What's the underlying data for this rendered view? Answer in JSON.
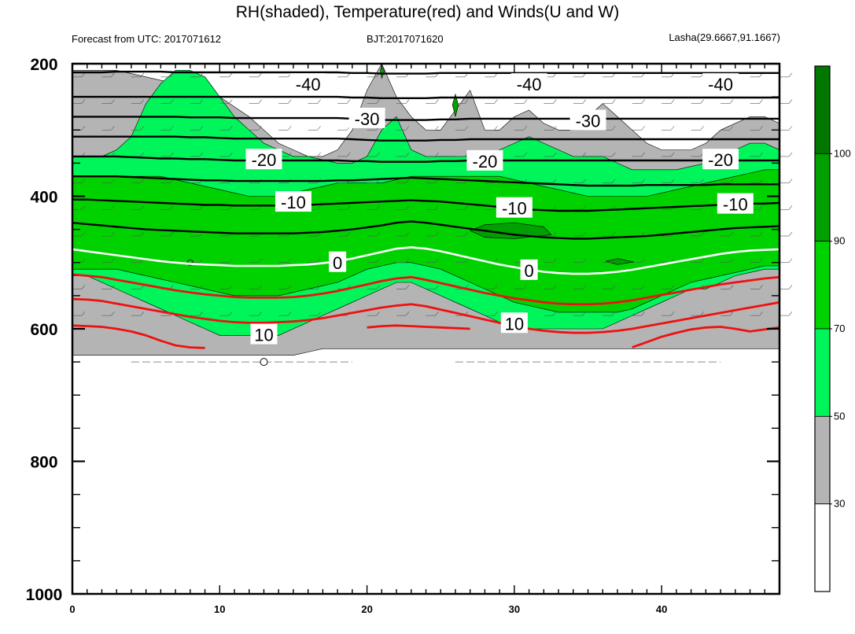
{
  "chart_data": {
    "type": "contour",
    "title": "RH(shaded), Temperature(red) and Winds(U and W)",
    "subtitle_left": "Forecast from UTC: 2017071612",
    "subtitle_center": "BJT:2017071620",
    "subtitle_right": "Lasha(29.6667,91.1667)",
    "x_range": [
      0,
      48
    ],
    "x_ticks": [
      "0",
      "10",
      "20",
      "30",
      "40"
    ],
    "x_tick_values": [
      0,
      10,
      20,
      30,
      40
    ],
    "y_range": [
      200,
      1000
    ],
    "y_ticks": [
      "200",
      "400",
      "600",
      "800",
      "1000"
    ],
    "y_tick_values": [
      200,
      400,
      600,
      800,
      1000
    ],
    "colorbar": {
      "labels": [
        "30",
        "50",
        "70",
        "90",
        "100"
      ],
      "levels": [
        30,
        50,
        70,
        90,
        100
      ],
      "colors": [
        "#ffffff",
        "#b4b4b4",
        "#00f55a",
        "#00d200",
        "#00a000",
        "#007800"
      ]
    },
    "rh_bands": [
      {
        "color": "#b4b4b4",
        "top": [
          210,
          210,
          210,
          210,
          215,
          220,
          225,
          230,
          235,
          240,
          250,
          265,
          280,
          300,
          320,
          330,
          340,
          340,
          330,
          300,
          240,
          200,
          250,
          280,
          300,
          300,
          270,
          240,
          300,
          300,
          280,
          270,
          290,
          300,
          300,
          280,
          260,
          280,
          300,
          320,
          330,
          330,
          330,
          320,
          300,
          290,
          280,
          280,
          290
        ],
        "bottom": [
          640,
          640,
          640,
          640,
          640,
          640,
          640,
          640,
          640,
          640,
          640,
          640,
          640,
          640,
          640,
          640,
          635,
          630,
          630,
          630,
          630,
          630,
          630,
          630,
          630,
          630,
          630,
          630,
          630,
          630,
          630,
          630,
          630,
          630,
          630,
          630,
          630,
          630,
          630,
          630,
          630,
          630,
          630,
          630,
          630,
          630,
          630,
          630,
          630
        ]
      },
      {
        "color": "#00f55a",
        "top": [
          340,
          340,
          340,
          330,
          310,
          260,
          230,
          210,
          210,
          220,
          250,
          280,
          300,
          320,
          330,
          340,
          340,
          345,
          350,
          350,
          340,
          300,
          280,
          330,
          340,
          340,
          340,
          340,
          340,
          330,
          320,
          310,
          320,
          330,
          340,
          340,
          340,
          350,
          360,
          360,
          360,
          360,
          355,
          350,
          340,
          330,
          320,
          320,
          330
        ],
        "bottom": [
          520,
          520,
          530,
          540,
          550,
          560,
          570,
          580,
          590,
          600,
          610,
          610,
          610,
          610,
          610,
          600,
          590,
          580,
          570,
          560,
          550,
          540,
          530,
          530,
          540,
          550,
          560,
          570,
          580,
          590,
          600,
          600,
          600,
          600,
          600,
          600,
          600,
          590,
          580,
          570,
          560,
          550,
          540,
          540,
          530,
          520,
          515,
          510,
          510
        ]
      },
      {
        "color": "#00d200",
        "top": [
          370,
          370,
          370,
          370,
          370,
          370,
          370,
          375,
          380,
          385,
          390,
          395,
          400,
          400,
          400,
          395,
          390,
          385,
          380,
          380,
          380,
          380,
          375,
          370,
          370,
          370,
          370,
          370,
          370,
          370,
          375,
          380,
          385,
          390,
          395,
          400,
          400,
          400,
          400,
          400,
          395,
          390,
          385,
          380,
          375,
          370,
          365,
          360,
          360
        ],
        "bottom": [
          510,
          510,
          510,
          510,
          515,
          520,
          525,
          530,
          535,
          540,
          545,
          550,
          550,
          550,
          550,
          545,
          540,
          535,
          530,
          520,
          510,
          505,
          500,
          500,
          505,
          510,
          520,
          530,
          540,
          550,
          560,
          565,
          570,
          575,
          575,
          575,
          575,
          575,
          570,
          560,
          550,
          540,
          530,
          525,
          520,
          515,
          510,
          505,
          505
        ]
      }
    ],
    "dark_patches": [
      {
        "color": "#00a000",
        "points": [
          [
            27,
            452
          ],
          [
            28,
            443
          ],
          [
            30,
            440
          ],
          [
            32,
            446
          ],
          [
            32.5,
            458
          ],
          [
            30,
            464
          ],
          [
            28,
            462
          ]
        ]
      },
      {
        "color": "#00a000",
        "points": [
          [
            36.2,
            498
          ],
          [
            37,
            494
          ],
          [
            38.1,
            499
          ],
          [
            37,
            503
          ]
        ]
      },
      {
        "color": "#00a000",
        "points": [
          [
            25.8,
            262
          ],
          [
            26,
            246
          ],
          [
            26.2,
            262
          ],
          [
            26,
            280
          ]
        ]
      },
      {
        "color": "#00a000",
        "points": [
          [
            20.9,
            210
          ],
          [
            21,
            205
          ],
          [
            21.2,
            210
          ],
          [
            21,
            222
          ]
        ]
      }
    ],
    "temperature_isolines": [
      {
        "label": "-40",
        "level": -40,
        "values": [
          213,
          213,
          213,
          212,
          212,
          212,
          212,
          213,
          213,
          213,
          213,
          213,
          213,
          213,
          213,
          213,
          213,
          213,
          213,
          214,
          214,
          215,
          215,
          215,
          215,
          214,
          214,
          214,
          214,
          214,
          214,
          214,
          214,
          214,
          214,
          214,
          214,
          214,
          214,
          214,
          214,
          214,
          214,
          214,
          214,
          214,
          214,
          214,
          214
        ],
        "label_at": [
          [
            16,
            231
          ],
          [
            31,
            231
          ],
          [
            44,
            231
          ]
        ]
      },
      {
        "label": "",
        "level": -35,
        "values": [
          250,
          250,
          250,
          250,
          250,
          250,
          250,
          250,
          250,
          250,
          250,
          250,
          250,
          250,
          250,
          250,
          250,
          250,
          250,
          251,
          251,
          252,
          252,
          252,
          252,
          251,
          251,
          251,
          251,
          251,
          251,
          251,
          251,
          251,
          251,
          251,
          251,
          251,
          251,
          251,
          251,
          251,
          251,
          251,
          251,
          251,
          251,
          251,
          251
        ],
        "label_at": []
      },
      {
        "label": "-30",
        "level": -30,
        "values": [
          280,
          280,
          280,
          280,
          280,
          280,
          280,
          280,
          281,
          281,
          281,
          282,
          282,
          282,
          282,
          282,
          282,
          282,
          282,
          283,
          284,
          285,
          285,
          285,
          285,
          284,
          284,
          283,
          283,
          283,
          283,
          283,
          283,
          283,
          283,
          283,
          283,
          283,
          283,
          283,
          283,
          283,
          283,
          283,
          283,
          283,
          283,
          283,
          283
        ],
        "label_at": [
          [
            20,
            283
          ],
          [
            35,
            286
          ]
        ]
      },
      {
        "label": "",
        "level": -25,
        "values": [
          310,
          310,
          310,
          310,
          310,
          310,
          310,
          310,
          311,
          311,
          312,
          313,
          313,
          313,
          313,
          313,
          313,
          313,
          313,
          314,
          315,
          316,
          316,
          316,
          316,
          315,
          315,
          314,
          314,
          314,
          314,
          314,
          314,
          314,
          314,
          314,
          314,
          314,
          314,
          314,
          314,
          314,
          314,
          314,
          314,
          314,
          314,
          314,
          314
        ],
        "label_at": []
      },
      {
        "label": "-20",
        "level": -20,
        "values": [
          340,
          340,
          340,
          340,
          341,
          342,
          343,
          343,
          344,
          344,
          345,
          346,
          346,
          346,
          346,
          346,
          346,
          346,
          346,
          347,
          347,
          348,
          348,
          348,
          348,
          347,
          347,
          346,
          346,
          346,
          346,
          346,
          346,
          346,
          346,
          346,
          346,
          346,
          346,
          346,
          346,
          346,
          346,
          346,
          346,
          346,
          346,
          346,
          346
        ],
        "label_at": [
          [
            13,
            345
          ],
          [
            28,
            347
          ],
          [
            44,
            345
          ]
        ]
      },
      {
        "label": "",
        "level": -15,
        "values": [
          370,
          370,
          370,
          370,
          371,
          372,
          373,
          374,
          375,
          376,
          376,
          377,
          377,
          377,
          377,
          377,
          377,
          377,
          376,
          376,
          375,
          374,
          373,
          372,
          373,
          374,
          375,
          376,
          377,
          378,
          379,
          380,
          381,
          382,
          383,
          384,
          384,
          384,
          384,
          383,
          383,
          383,
          383,
          383,
          382,
          382,
          382,
          382,
          382
        ],
        "label_at": []
      },
      {
        "label": "-10",
        "level": -10,
        "values": [
          405,
          405,
          406,
          407,
          408,
          409,
          410,
          411,
          412,
          413,
          413,
          414,
          414,
          414,
          414,
          413,
          413,
          412,
          411,
          410,
          409,
          408,
          407,
          406,
          407,
          408,
          410,
          412,
          414,
          416,
          418,
          420,
          421,
          422,
          422,
          422,
          421,
          420,
          419,
          418,
          417,
          416,
          415,
          414,
          413,
          412,
          411,
          411,
          410
        ],
        "label_at": [
          [
            15,
            409
          ],
          [
            30,
            418
          ],
          [
            45,
            412
          ]
        ]
      },
      {
        "label": "",
        "level": -5,
        "values": [
          440,
          442,
          444,
          446,
          448,
          450,
          451,
          452,
          453,
          454,
          455,
          456,
          456,
          456,
          456,
          456,
          455,
          454,
          452,
          450,
          447,
          444,
          440,
          438,
          440,
          443,
          446,
          449,
          452,
          455,
          458,
          460,
          462,
          463,
          464,
          464,
          463,
          462,
          461,
          460,
          458,
          456,
          454,
          452,
          450,
          448,
          447,
          446,
          445
        ],
        "label_at": []
      },
      {
        "label": "0",
        "level": 0,
        "values": [
          480,
          483,
          486,
          489,
          492,
          495,
          498,
          500,
          502,
          503,
          504,
          505,
          505,
          505,
          505,
          504,
          503,
          501,
          498,
          494,
          489,
          484,
          479,
          477,
          479,
          483,
          488,
          493,
          498,
          503,
          507,
          511,
          514,
          516,
          517,
          517,
          516,
          514,
          511,
          507,
          503,
          499,
          495,
          491,
          487,
          484,
          482,
          481,
          480
        ],
        "label_at": [
          [
            18,
            500
          ],
          [
            31,
            512
          ]
        ]
      },
      {
        "label": "",
        "level": 5,
        "values": [
          518,
          520,
          522,
          526,
          530,
          534,
          538,
          542,
          545,
          548,
          550,
          552,
          553,
          553,
          553,
          552,
          550,
          547,
          543,
          538,
          533,
          528,
          524,
          522,
          526,
          531,
          536,
          541,
          546,
          550,
          554,
          557,
          560,
          562,
          563,
          563,
          562,
          560,
          557,
          553,
          549,
          545,
          541,
          537,
          533,
          530,
          527,
          524,
          522
        ],
        "label_at": []
      },
      {
        "label": "10",
        "level": 10,
        "values": [
          555,
          556,
          558,
          562,
          566,
          570,
          574,
          578,
          582,
          585,
          588,
          590,
          591,
          591,
          590,
          589,
          587,
          584,
          580,
          576,
          572,
          568,
          565,
          563,
          566,
          571,
          576,
          581,
          586,
          591,
          596,
          600,
          603,
          605,
          606,
          606,
          605,
          603,
          600,
          596,
          592,
          588,
          584,
          580,
          576,
          572,
          568,
          564,
          560
        ],
        "label_at": [
          [
            13,
            609
          ],
          [
            30,
            592
          ]
        ]
      },
      {
        "label": "",
        "level": 15,
        "values": [
          595,
          596,
          597,
          600,
          604,
          610,
          618,
          625,
          628,
          629,
          null,
          null,
          null,
          null,
          null,
          null,
          null,
          null,
          null,
          null,
          598,
          596,
          595,
          596,
          597,
          598,
          599,
          600,
          null,
          null,
          null,
          null,
          null,
          null,
          null,
          null,
          null,
          null,
          628,
          620,
          612,
          606,
          601,
          598,
          597,
          600,
          604,
          601,
          598
        ],
        "label_at": []
      }
    ],
    "isoline_notes": [
      "-40",
      "-30",
      "-20",
      "-10",
      "0",
      "10"
    ]
  }
}
